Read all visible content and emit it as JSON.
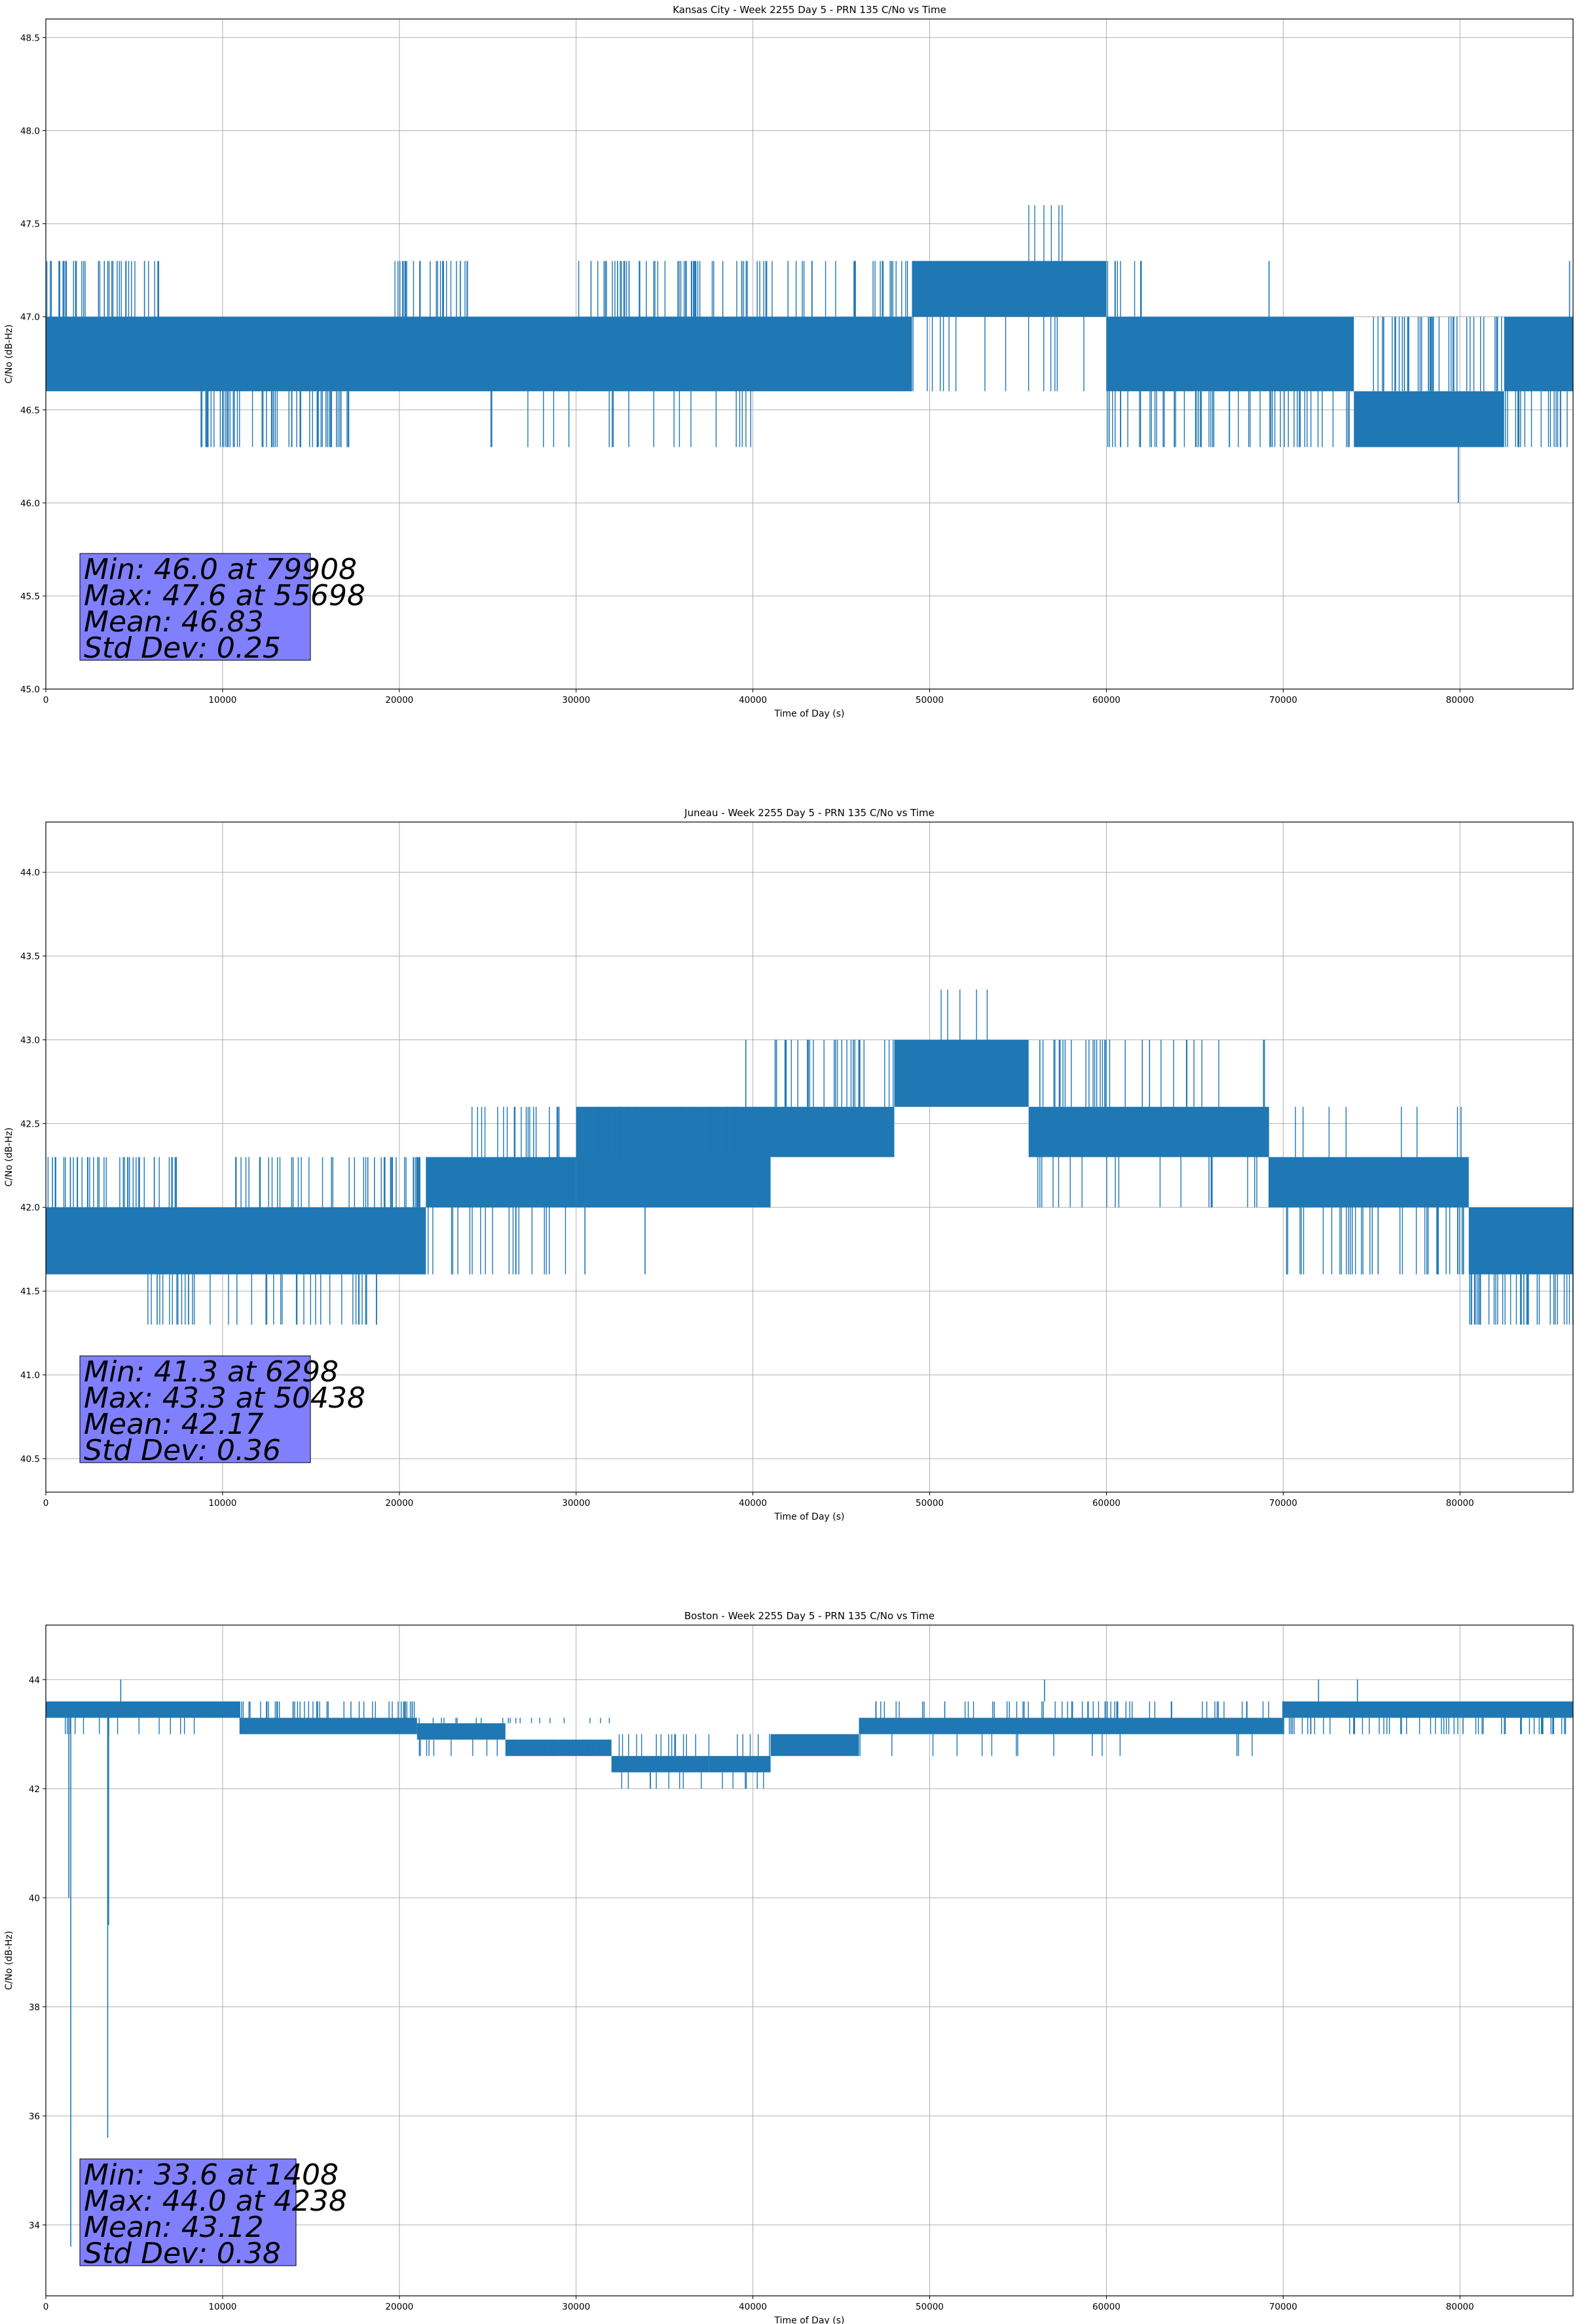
{
  "chart_data": [
    {
      "type": "line",
      "title": "Kansas City - Week 2255 Day 5 - PRN 135 C/No vs Time",
      "xlabel": "Time of Day (s)",
      "ylabel": "C/No (dB-Hz)",
      "xlim": [
        0,
        86400
      ],
      "ylim": [
        45.0,
        48.6
      ],
      "xticks": [
        0,
        10000,
        20000,
        30000,
        40000,
        50000,
        60000,
        70000,
        80000
      ],
      "xtick_labels": [
        "0",
        "10000",
        "20000",
        "30000",
        "40000",
        "50000",
        "60000",
        "70000",
        "80000"
      ],
      "yticks": [
        45.0,
        45.5,
        46.0,
        46.5,
        47.0,
        47.5,
        48.0,
        48.5
      ],
      "ytick_labels": [
        "45.0",
        "45.5",
        "46.0",
        "46.5",
        "47.0",
        "47.5",
        "48.0",
        "48.5"
      ],
      "grid": true,
      "color": "#1f77b4",
      "series": [
        {
          "bands": [
            {
              "x0": 0,
              "x1": 49000,
              "y0": 46.6,
              "y1": 47.0
            },
            {
              "x0": 49000,
              "x1": 60000,
              "y0": 47.0,
              "y1": 47.3
            },
            {
              "x0": 60000,
              "x1": 74000,
              "y0": 46.6,
              "y1": 47.0
            },
            {
              "x0": 74000,
              "x1": 82500,
              "y0": 46.3,
              "y1": 46.6
            },
            {
              "x0": 82500,
              "x1": 86400,
              "y0": 46.6,
              "y1": 47.0
            }
          ],
          "spikes": [
            {
              "x0": 0,
              "x1": 6500,
              "y0": 47.0,
              "y1": 47.3,
              "n": 40
            },
            {
              "x0": 19700,
              "x1": 24000,
              "y0": 47.0,
              "y1": 47.3,
              "n": 25
            },
            {
              "x0": 30000,
              "x1": 33000,
              "y0": 47.0,
              "y1": 47.3,
              "n": 18
            },
            {
              "x0": 33500,
              "x1": 49000,
              "y0": 47.0,
              "y1": 47.3,
              "n": 60
            },
            {
              "x0": 60000,
              "x1": 62000,
              "y0": 47.0,
              "y1": 47.3,
              "n": 8
            },
            {
              "x0": 8500,
              "x1": 17500,
              "y0": 46.3,
              "y1": 46.6,
              "n": 55
            },
            {
              "x0": 25000,
              "x1": 40000,
              "y0": 46.3,
              "y1": 46.6,
              "n": 20
            },
            {
              "x0": 60000,
              "x1": 74000,
              "y0": 46.3,
              "y1": 46.6,
              "n": 55
            },
            {
              "x0": 82500,
              "x1": 86400,
              "y0": 46.3,
              "y1": 46.6,
              "n": 18
            },
            {
              "x0": 55000,
              "x1": 57500,
              "y0": 47.3,
              "y1": 47.6,
              "n": 6
            },
            {
              "x0": 49000,
              "x1": 60000,
              "y0": 46.6,
              "y1": 47.0,
              "n": 15
            },
            {
              "x0": 74000,
              "x1": 82500,
              "y0": 46.6,
              "y1": 47.0,
              "n": 40
            }
          ],
          "extra": [
            {
              "x": 79908,
              "y0": 46.3,
              "y1": 46.0
            },
            {
              "x": 69200,
              "y0": 47.0,
              "y1": 47.3
            },
            {
              "x": 86200,
              "y0": 47.0,
              "y1": 47.3
            }
          ]
        }
      ],
      "stats": [
        "Min: 46.0 at 79908",
        "Max: 47.6 at 55698",
        "Mean: 46.83",
        "Std Dev: 0.25"
      ]
    },
    {
      "type": "line",
      "title": "Juneau - Week 2255 Day 5 - PRN 135 C/No vs Time",
      "xlabel": "Time of Day (s)",
      "ylabel": "C/No (dB-Hz)",
      "xlim": [
        0,
        86400
      ],
      "ylim": [
        40.3,
        44.3
      ],
      "xticks": [
        0,
        10000,
        20000,
        30000,
        40000,
        50000,
        60000,
        70000,
        80000
      ],
      "xtick_labels": [
        "0",
        "10000",
        "20000",
        "30000",
        "40000",
        "50000",
        "60000",
        "70000",
        "80000"
      ],
      "yticks": [
        40.5,
        41.0,
        41.5,
        42.0,
        42.5,
        43.0,
        43.5,
        44.0
      ],
      "ytick_labels": [
        "40.5",
        "41.0",
        "41.5",
        "42.0",
        "42.5",
        "43.0",
        "43.5",
        "44.0"
      ],
      "grid": true,
      "color": "#1f77b4",
      "series": [
        {
          "bands": [
            {
              "x0": 0,
              "x1": 21500,
              "y0": 41.6,
              "y1": 42.0
            },
            {
              "x0": 21500,
              "x1": 30000,
              "y0": 42.0,
              "y1": 42.3
            },
            {
              "x0": 30000,
              "x1": 41000,
              "y0": 42.0,
              "y1": 42.6
            },
            {
              "x0": 41000,
              "x1": 48000,
              "y0": 42.3,
              "y1": 42.6
            },
            {
              "x0": 48000,
              "x1": 55600,
              "y0": 42.6,
              "y1": 43.0
            },
            {
              "x0": 55600,
              "x1": 69200,
              "y0": 42.3,
              "y1": 42.6
            },
            {
              "x0": 69200,
              "x1": 80500,
              "y0": 42.0,
              "y1": 42.3
            },
            {
              "x0": 80500,
              "x1": 86400,
              "y0": 41.6,
              "y1": 42.0
            }
          ],
          "spikes": [
            {
              "x0": 0,
              "x1": 7500,
              "y0": 42.0,
              "y1": 42.3,
              "n": 45
            },
            {
              "x0": 10000,
              "x1": 21500,
              "y0": 42.0,
              "y1": 42.3,
              "n": 45
            },
            {
              "x0": 5500,
              "x1": 19500,
              "y0": 41.3,
              "y1": 41.6,
              "n": 40
            },
            {
              "x0": 24000,
              "x1": 30000,
              "y0": 42.3,
              "y1": 42.6,
              "n": 20
            },
            {
              "x0": 30000,
              "x1": 41000,
              "y0": 42.3,
              "y1": 42.6,
              "n": 40
            },
            {
              "x0": 41000,
              "x1": 48000,
              "y0": 42.6,
              "y1": 43.0,
              "n": 30
            },
            {
              "x0": 55600,
              "x1": 69200,
              "y0": 42.6,
              "y1": 43.0,
              "n": 35
            },
            {
              "x0": 55600,
              "x1": 69200,
              "y0": 42.0,
              "y1": 42.3,
              "n": 20
            },
            {
              "x0": 69200,
              "x1": 80500,
              "y0": 41.6,
              "y1": 42.0,
              "n": 40
            },
            {
              "x0": 69200,
              "x1": 80500,
              "y0": 42.3,
              "y1": 42.6,
              "n": 8
            },
            {
              "x0": 80500,
              "x1": 86400,
              "y0": 41.3,
              "y1": 41.6,
              "n": 35
            },
            {
              "x0": 50000,
              "x1": 54000,
              "y0": 43.0,
              "y1": 43.3,
              "n": 5
            },
            {
              "x0": 21500,
              "x1": 30000,
              "y0": 41.6,
              "y1": 42.0,
              "n": 20
            }
          ],
          "extra": [
            {
              "x": 6298,
              "y0": 41.6,
              "y1": 41.3
            },
            {
              "x": 30500,
              "y0": 42.0,
              "y1": 41.6
            },
            {
              "x": 33900,
              "y0": 42.0,
              "y1": 41.6
            },
            {
              "x": 39600,
              "y0": 42.6,
              "y1": 43.0
            }
          ]
        }
      ],
      "stats": [
        "Min: 41.3 at 6298",
        "Max: 43.3 at 50438",
        "Mean: 42.17",
        "Std Dev: 0.36"
      ]
    },
    {
      "type": "line",
      "title": "Boston - Week 2255 Day 5 - PRN 135 C/No vs Time",
      "xlabel": "Time of Day (s)",
      "ylabel": "C/No (dB-Hz)",
      "xlim": [
        0,
        86400
      ],
      "ylim": [
        32.7,
        45.0
      ],
      "xticks": [
        0,
        10000,
        20000,
        30000,
        40000,
        50000,
        60000,
        70000,
        80000
      ],
      "xtick_labels": [
        "0",
        "10000",
        "20000",
        "30000",
        "40000",
        "50000",
        "60000",
        "70000",
        "80000"
      ],
      "yticks": [
        34,
        36,
        38,
        40,
        42,
        44
      ],
      "ytick_labels": [
        "34",
        "36",
        "38",
        "40",
        "42",
        "44"
      ],
      "grid": true,
      "color": "#1f77b4",
      "series": [
        {
          "bands": [
            {
              "x0": 0,
              "x1": 11000,
              "y0": 43.3,
              "y1": 43.6
            },
            {
              "x0": 11000,
              "x1": 21000,
              "y0": 43.0,
              "y1": 43.3
            },
            {
              "x0": 21000,
              "x1": 26000,
              "y0": 42.9,
              "y1": 43.2
            },
            {
              "x0": 26000,
              "x1": 32000,
              "y0": 42.6,
              "y1": 42.9
            },
            {
              "x0": 32000,
              "x1": 37500,
              "y0": 42.3,
              "y1": 42.6
            },
            {
              "x0": 37500,
              "x1": 41000,
              "y0": 42.3,
              "y1": 42.6
            },
            {
              "x0": 41000,
              "x1": 46000,
              "y0": 42.6,
              "y1": 43.0
            },
            {
              "x0": 46000,
              "x1": 70000,
              "y0": 43.0,
              "y1": 43.3
            },
            {
              "x0": 70000,
              "x1": 86400,
              "y0": 43.3,
              "y1": 43.6
            }
          ],
          "spikes": [
            {
              "x0": 0,
              "x1": 11000,
              "y0": 43.0,
              "y1": 43.3,
              "n": 15
            },
            {
              "x0": 11000,
              "x1": 21000,
              "y0": 43.3,
              "y1": 43.6,
              "n": 45
            },
            {
              "x0": 21000,
              "x1": 32000,
              "y0": 42.6,
              "y1": 42.9,
              "n": 30
            },
            {
              "x0": 21000,
              "x1": 32000,
              "y0": 43.2,
              "y1": 43.3,
              "n": 20
            },
            {
              "x0": 32000,
              "x1": 41000,
              "y0": 42.6,
              "y1": 43.0,
              "n": 20
            },
            {
              "x0": 32000,
              "x1": 41000,
              "y0": 42.0,
              "y1": 42.3,
              "n": 15
            },
            {
              "x0": 46000,
              "x1": 70000,
              "y0": 43.3,
              "y1": 43.6,
              "n": 60
            },
            {
              "x0": 46000,
              "x1": 70000,
              "y0": 42.6,
              "y1": 43.0,
              "n": 15
            },
            {
              "x0": 70000,
              "x1": 86400,
              "y0": 43.0,
              "y1": 43.3,
              "n": 60
            }
          ],
          "extra": [
            {
              "x": 1408,
              "y0": 43.3,
              "y1": 33.6
            },
            {
              "x": 3500,
              "y0": 43.3,
              "y1": 35.6
            },
            {
              "x": 1300,
              "y0": 43.3,
              "y1": 40.0
            },
            {
              "x": 3550,
              "y0": 43.3,
              "y1": 39.5
            },
            {
              "x": 4238,
              "y0": 43.6,
              "y1": 44.0
            },
            {
              "x": 56500,
              "y0": 43.6,
              "y1": 44.0
            },
            {
              "x": 72000,
              "y0": 43.6,
              "y1": 44.0
            },
            {
              "x": 74200,
              "y0": 43.6,
              "y1": 44.0
            }
          ]
        }
      ],
      "stats": [
        "Min: 33.6 at 1408",
        "Max: 44.0 at 4238",
        "Mean: 43.12",
        "Std Dev: 0.38"
      ]
    }
  ]
}
